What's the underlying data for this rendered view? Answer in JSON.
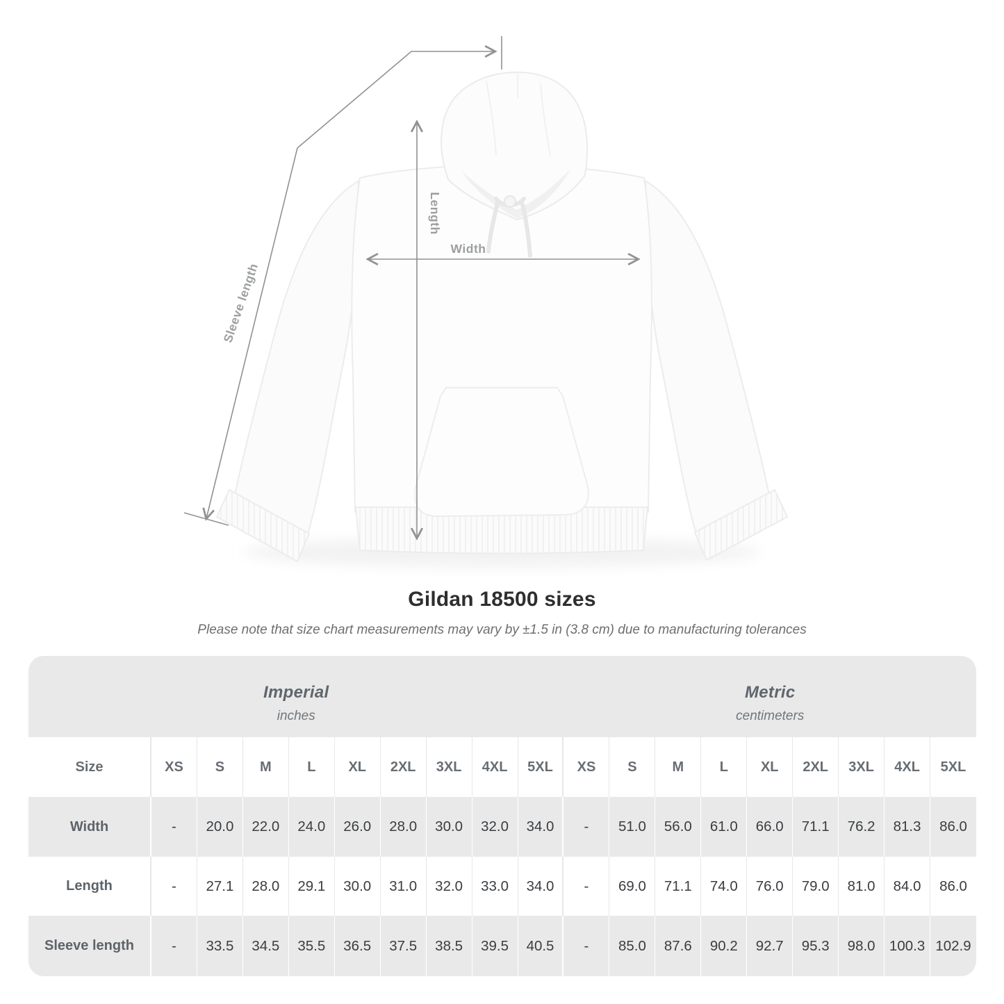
{
  "title": "Gildan 18500 sizes",
  "subtitle": "Please note that size chart measurements may vary by ±1.5 in (3.8 cm) due to manufacturing tolerances",
  "diagram": {
    "labels": {
      "length": "Length",
      "width": "Width",
      "sleeve_length": "Sleeve length"
    },
    "line_color": "#8f9193",
    "label_color": "#9c9ea0"
  },
  "table": {
    "size_header": "Size",
    "sizes": [
      "XS",
      "S",
      "M",
      "L",
      "XL",
      "2XL",
      "3XL",
      "4XL",
      "5XL"
    ],
    "sections": [
      {
        "name": "Imperial",
        "unit": "inches"
      },
      {
        "name": "Metric",
        "unit": "centimeters"
      }
    ],
    "rows": [
      {
        "label": "Width",
        "imperial": [
          "-",
          "20.0",
          "22.0",
          "24.0",
          "26.0",
          "28.0",
          "30.0",
          "32.0",
          "34.0"
        ],
        "metric": [
          "-",
          "51.0",
          "56.0",
          "61.0",
          "66.0",
          "71.1",
          "76.2",
          "81.3",
          "86.0"
        ]
      },
      {
        "label": "Length",
        "imperial": [
          "-",
          "27.1",
          "28.0",
          "29.1",
          "30.0",
          "31.0",
          "32.0",
          "33.0",
          "34.0"
        ],
        "metric": [
          "-",
          "69.0",
          "71.1",
          "74.0",
          "76.0",
          "79.0",
          "81.0",
          "84.0",
          "86.0"
        ]
      },
      {
        "label": "Sleeve length",
        "imperial": [
          "-",
          "33.5",
          "34.5",
          "35.5",
          "36.5",
          "37.5",
          "38.5",
          "39.5",
          "40.5"
        ],
        "metric": [
          "-",
          "85.0",
          "87.6",
          "90.2",
          "92.7",
          "95.3",
          "98.0",
          "100.3",
          "102.9"
        ]
      }
    ],
    "colors": {
      "band_bg": "#e9e9e9",
      "row_alt_bg": "#e9e9e9",
      "row_bg": "#ffffff",
      "header_text": "#676d73",
      "value_text": "#3a3d40"
    }
  }
}
